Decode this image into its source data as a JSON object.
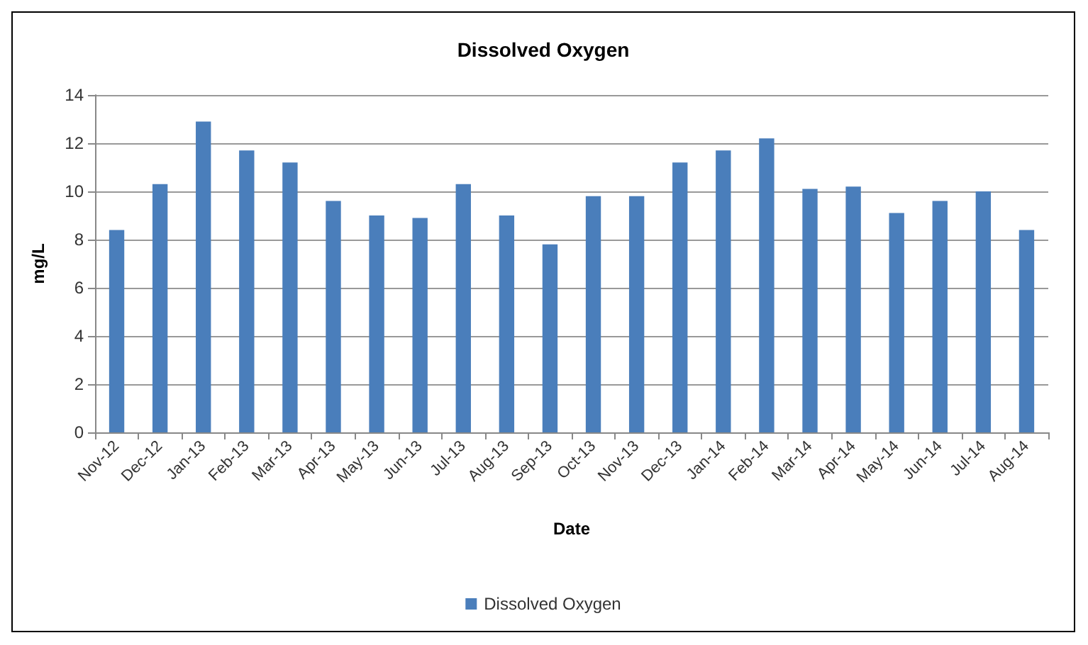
{
  "chart_data": {
    "type": "bar",
    "title": "Dissolved Oxygen",
    "xlabel": "Date",
    "ylabel": "mg/L",
    "categories": [
      "Nov-12",
      "Dec-12",
      "Jan-13",
      "Feb-13",
      "Mar-13",
      "Apr-13",
      "May-13",
      "Jun-13",
      "Jul-13",
      "Aug-13",
      "Sep-13",
      "Oct-13",
      "Nov-13",
      "Dec-13",
      "Jan-14",
      "Feb-14",
      "Mar-14",
      "Apr-14",
      "May-14",
      "Jun-14",
      "Jul-14",
      "Aug-14"
    ],
    "series": [
      {
        "name": "Dissolved Oxygen",
        "color": "#4a7ebb",
        "values": [
          8.4,
          10.3,
          12.9,
          11.7,
          11.2,
          9.6,
          9.0,
          8.9,
          10.3,
          9.0,
          7.8,
          9.8,
          9.8,
          11.2,
          11.7,
          12.2,
          10.1,
          10.2,
          9.1,
          9.6,
          10.0,
          8.4
        ]
      }
    ],
    "ylim": [
      0,
      14
    ],
    "yticks": [
      0,
      2,
      4,
      6,
      8,
      10,
      12,
      14
    ],
    "grid": "y",
    "legend": "bottom"
  }
}
